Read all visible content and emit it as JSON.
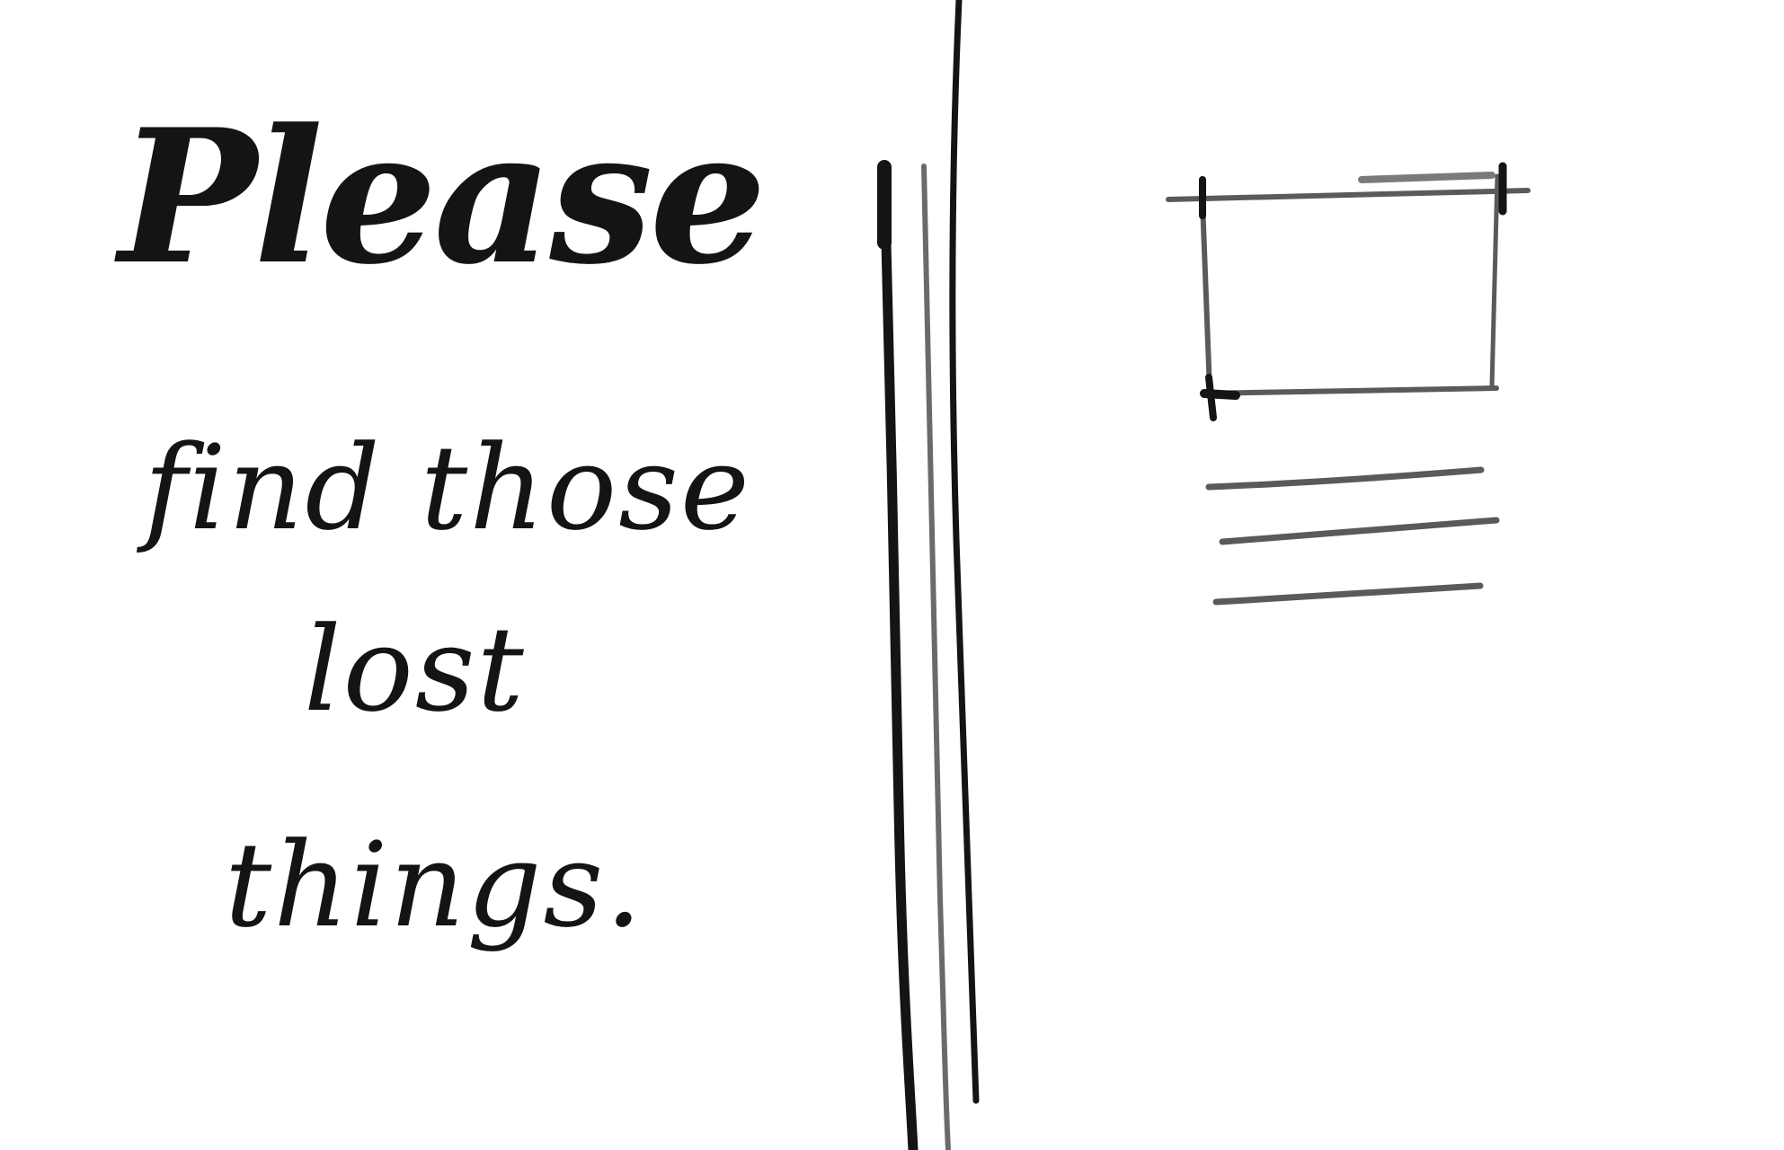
{
  "handwriting": {
    "line1": "Please",
    "line2": "find those",
    "line3": "lost",
    "line4": "things."
  },
  "colors": {
    "ink": "#141414",
    "pencil": "#5a5a5a",
    "background": "#ffffff"
  }
}
